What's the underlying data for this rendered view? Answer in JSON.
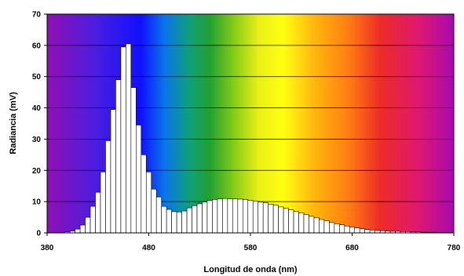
{
  "chart_data": {
    "type": "bar",
    "xlabel": "Longitud de onda (nm)",
    "ylabel": "Radiancia (mV)",
    "xlim": [
      380,
      780
    ],
    "ylim": [
      0,
      70
    ],
    "x_ticks": [
      "380",
      "480",
      "580",
      "680",
      "780"
    ],
    "y_ticks": [
      "0",
      "10",
      "20",
      "30",
      "40",
      "50",
      "60",
      "70"
    ],
    "grid": "horizontal",
    "legend": "none",
    "background": "visible-spectrum gradient",
    "bar_color": "#ffffff",
    "bar_edge_color": "#000000",
    "bin_width": 5,
    "x": [
      400,
      405,
      410,
      415,
      420,
      425,
      430,
      435,
      440,
      445,
      450,
      455,
      460,
      465,
      470,
      475,
      480,
      485,
      490,
      495,
      500,
      505,
      510,
      515,
      520,
      525,
      530,
      535,
      540,
      545,
      550,
      555,
      560,
      565,
      570,
      575,
      580,
      585,
      590,
      595,
      600,
      605,
      610,
      615,
      620,
      625,
      630,
      635,
      640,
      645,
      650,
      655,
      660,
      665,
      670,
      675,
      680,
      685,
      690,
      695,
      700,
      705,
      710,
      715,
      720,
      725,
      730,
      735,
      740,
      745,
      750,
      755,
      760,
      765,
      770,
      775
    ],
    "values": [
      0.3,
      0.6,
      1.2,
      2.5,
      5,
      8.5,
      13,
      19.5,
      29.5,
      39.5,
      49,
      59.5,
      60.5,
      46.5,
      34.5,
      25,
      19.5,
      14,
      11.5,
      8.5,
      7.5,
      6.8,
      6.7,
      7,
      8,
      8.7,
      9.3,
      9.9,
      10.4,
      10.7,
      10.9,
      11,
      10.9,
      10.9,
      10.8,
      10.7,
      10.4,
      10.2,
      9.9,
      9.6,
      9.2,
      8.9,
      8.3,
      7.9,
      7.4,
      6.9,
      6.4,
      5.9,
      5.3,
      4.8,
      4.3,
      3.9,
      3.4,
      2.9,
      2.6,
      2.2,
      1.9,
      1.6,
      1.3,
      1.1,
      0.9,
      0.8,
      0.7,
      0.6,
      0.5,
      0.5,
      0.4,
      0.4,
      0.3,
      0.3,
      0.2,
      0.2,
      0.2,
      0.1,
      0.1,
      0.1
    ]
  }
}
